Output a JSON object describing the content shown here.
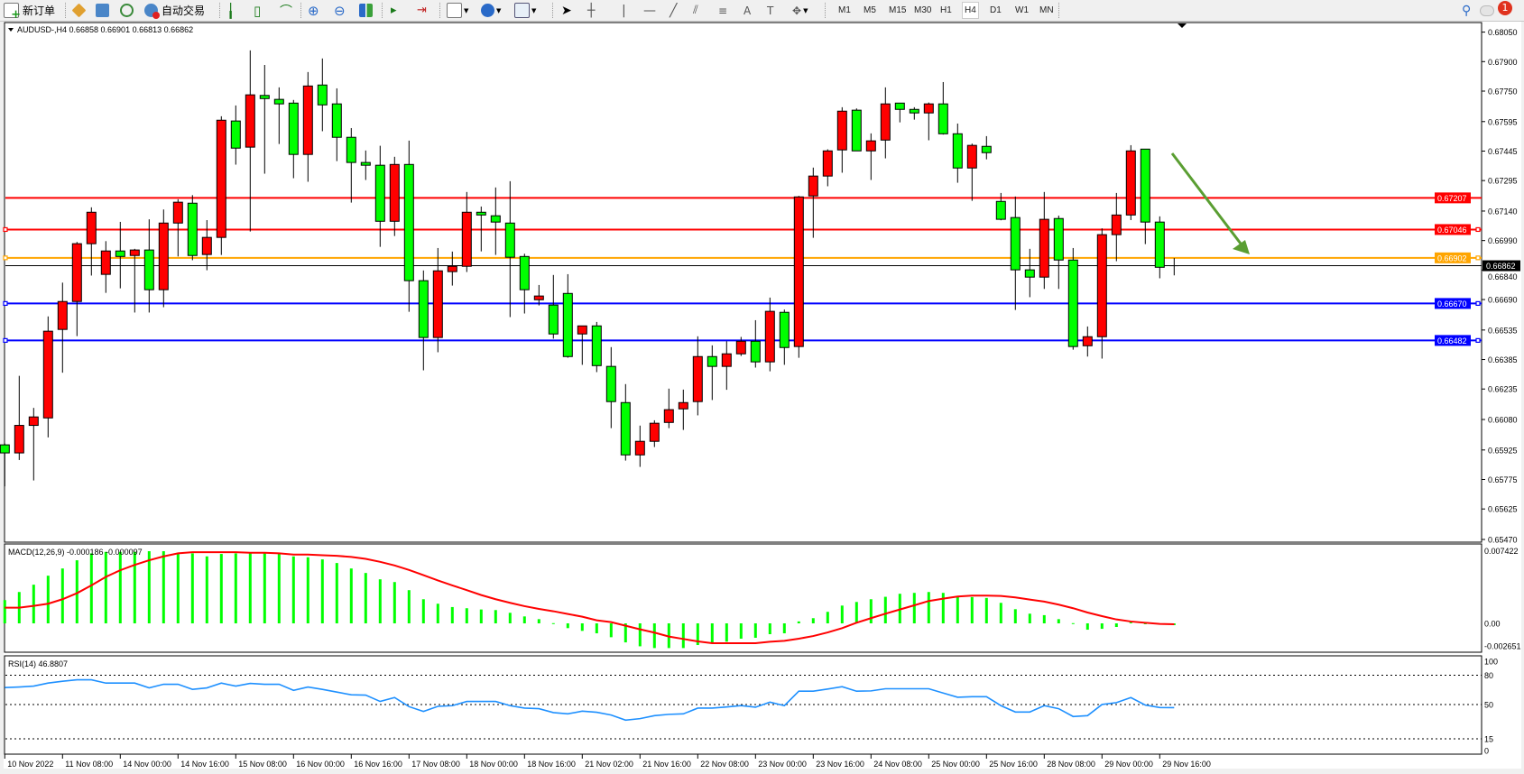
{
  "toolbar": {
    "new_order_label": "新订单",
    "auto_trade_label": "自动交易",
    "timeframes": [
      "M1",
      "M5",
      "M15",
      "M30",
      "H1",
      "H4",
      "D1",
      "W1",
      "MN"
    ],
    "selected_timeframe": "H4",
    "notification_count": "1",
    "icons": [
      "new-order-icon",
      "metaeditor-icon",
      "market-watch-icon",
      "signals-icon",
      "auto-trading-icon",
      "bar-chart-icon",
      "candlestick-icon",
      "line-chart-icon",
      "zoom-in-icon",
      "zoom-out-icon",
      "tile-windows-icon",
      "auto-scroll-icon",
      "chart-shift-icon",
      "indicators-icon",
      "periods-icon",
      "templates-icon",
      "cursor-icon",
      "crosshair-icon",
      "vertical-line-icon",
      "horizontal-line-icon",
      "trendline-icon",
      "equidistant-channel-icon",
      "fibonacci-icon",
      "text-icon",
      "text-label-icon",
      "arrows-icon",
      "search-icon",
      "chat-icon"
    ]
  },
  "chart": {
    "header": "AUDUSD-,H4  0.66858 0.66901 0.66813 0.66862",
    "symbol": "AUDUSD-",
    "timeframe": "H4",
    "ohlc": {
      "open": 0.66858,
      "high": 0.66901,
      "low": 0.66813,
      "close": 0.66862
    },
    "colors": {
      "bull": "#ff0000",
      "bear": "#00ff00",
      "outline": "#000000",
      "arrow": "#5a9e32"
    },
    "price_axis_labels": [
      "0.68050",
      "0.67900",
      "0.67750",
      "0.67595",
      "0.67445",
      "0.67295",
      "0.67140",
      "0.66990",
      "0.66840",
      "0.66690",
      "0.66535",
      "0.66385",
      "0.66235",
      "0.66080",
      "0.65925",
      "0.65775",
      "0.65625",
      "0.65470"
    ],
    "horizontal_lines": [
      {
        "price": "0.67207",
        "color": "#ff0000"
      },
      {
        "price": "0.67046",
        "color": "#ff0000"
      },
      {
        "price": "0.66902",
        "color": "#ffa500"
      },
      {
        "price": "0.66670",
        "color": "#0000ff"
      },
      {
        "price": "0.66482",
        "color": "#0000ff"
      }
    ],
    "current_price": {
      "price": "0.66862",
      "color": "#000000"
    },
    "candles": [
      [
        0.65951,
        0.65958,
        0.6574,
        0.6591
      ],
      [
        0.6591,
        0.66302,
        0.65874,
        0.6605
      ],
      [
        0.6605,
        0.66139,
        0.6577,
        0.66093
      ],
      [
        0.66088,
        0.66604,
        0.65989,
        0.66529
      ],
      [
        0.66538,
        0.66776,
        0.66318,
        0.6668
      ],
      [
        0.6668,
        0.66983,
        0.66504,
        0.66974
      ],
      [
        0.66974,
        0.67159,
        0.66812,
        0.67134
      ],
      [
        0.66818,
        0.66987,
        0.66724,
        0.66937
      ],
      [
        0.66937,
        0.67085,
        0.66747,
        0.66909
      ],
      [
        0.66914,
        0.66948,
        0.66624,
        0.66942
      ],
      [
        0.66942,
        0.67098,
        0.66624,
        0.6674
      ],
      [
        0.6674,
        0.67148,
        0.66651,
        0.67079
      ],
      [
        0.67079,
        0.672,
        0.66909,
        0.67185
      ],
      [
        0.6718,
        0.67221,
        0.6689,
        0.66914
      ],
      [
        0.66919,
        0.67094,
        0.66839,
        0.67006
      ],
      [
        0.67006,
        0.67622,
        0.66917,
        0.67602
      ],
      [
        0.67598,
        0.67677,
        0.67376,
        0.6746
      ],
      [
        0.67465,
        0.67957,
        0.67036,
        0.67731
      ],
      [
        0.67728,
        0.67883,
        0.6733,
        0.67712
      ],
      [
        0.67708,
        0.67769,
        0.67481,
        0.67685
      ],
      [
        0.67689,
        0.67705,
        0.67307,
        0.67428
      ],
      [
        0.67428,
        0.67847,
        0.67289,
        0.67776
      ],
      [
        0.67781,
        0.67916,
        0.67546,
        0.6768
      ],
      [
        0.67685,
        0.67764,
        0.67394,
        0.67515
      ],
      [
        0.67515,
        0.67562,
        0.67183,
        0.67387
      ],
      [
        0.67387,
        0.67448,
        0.67298,
        0.67373
      ],
      [
        0.67373,
        0.67472,
        0.66958,
        0.67088
      ],
      [
        0.67088,
        0.67416,
        0.67013,
        0.67377
      ],
      [
        0.67377,
        0.67498,
        0.66628,
        0.66786
      ],
      [
        0.66786,
        0.66838,
        0.6633,
        0.66497
      ],
      [
        0.66497,
        0.66952,
        0.66422,
        0.66836
      ],
      [
        0.66832,
        0.66934,
        0.66761,
        0.66859
      ],
      [
        0.66859,
        0.67237,
        0.6683,
        0.67134
      ],
      [
        0.67134,
        0.67163,
        0.66935,
        0.6712
      ],
      [
        0.67116,
        0.6726,
        0.66917,
        0.67084
      ],
      [
        0.67079,
        0.67292,
        0.66601,
        0.66905
      ],
      [
        0.66909,
        0.66923,
        0.66619,
        0.6674
      ],
      [
        0.66689,
        0.66764,
        0.6666,
        0.66708
      ],
      [
        0.66662,
        0.66815,
        0.66491,
        0.66515
      ],
      [
        0.66721,
        0.66819,
        0.66394,
        0.664
      ],
      [
        0.66515,
        0.66556,
        0.66358,
        0.66556
      ],
      [
        0.66556,
        0.66576,
        0.66321,
        0.66354
      ],
      [
        0.6635,
        0.66448,
        0.66036,
        0.66171
      ],
      [
        0.66166,
        0.6626,
        0.65871,
        0.659
      ],
      [
        0.659,
        0.66049,
        0.65839,
        0.65969
      ],
      [
        0.65969,
        0.66076,
        0.6594,
        0.66061
      ],
      [
        0.66065,
        0.66237,
        0.66036,
        0.6613
      ],
      [
        0.66134,
        0.66232,
        0.66027,
        0.66166
      ],
      [
        0.66171,
        0.66503,
        0.66101,
        0.664
      ],
      [
        0.664,
        0.66457,
        0.66179,
        0.6635
      ],
      [
        0.6635,
        0.66478,
        0.66231,
        0.66414
      ],
      [
        0.66414,
        0.665,
        0.66403,
        0.66478
      ],
      [
        0.66478,
        0.66585,
        0.66344,
        0.66373
      ],
      [
        0.66373,
        0.667,
        0.66325,
        0.6663
      ],
      [
        0.66625,
        0.66639,
        0.66358,
        0.66446
      ],
      [
        0.66451,
        0.67217,
        0.66394,
        0.67212
      ],
      [
        0.67217,
        0.67361,
        0.67004,
        0.67318
      ],
      [
        0.67318,
        0.67454,
        0.67266,
        0.67446
      ],
      [
        0.67451,
        0.67668,
        0.67335,
        0.67648
      ],
      [
        0.67653,
        0.67662,
        0.67446,
        0.67446
      ],
      [
        0.67446,
        0.67535,
        0.67298,
        0.67497
      ],
      [
        0.67501,
        0.67769,
        0.67408,
        0.67685
      ],
      [
        0.67689,
        0.67689,
        0.67591,
        0.67657
      ],
      [
        0.67657,
        0.67668,
        0.67605,
        0.67639
      ],
      [
        0.67639,
        0.67692,
        0.675,
        0.67685
      ],
      [
        0.67685,
        0.67796,
        0.67529,
        0.67533
      ],
      [
        0.67533,
        0.67585,
        0.67284,
        0.67359
      ],
      [
        0.67359,
        0.67483,
        0.67192,
        0.67474
      ],
      [
        0.67469,
        0.67521,
        0.67403,
        0.67437
      ],
      [
        0.67189,
        0.67232,
        0.67093,
        0.67098
      ],
      [
        0.67107,
        0.67214,
        0.66637,
        0.66841
      ],
      [
        0.66841,
        0.66948,
        0.66702,
        0.66804
      ],
      [
        0.66804,
        0.67237,
        0.66744,
        0.67098
      ],
      [
        0.67102,
        0.67117,
        0.66744,
        0.66891
      ],
      [
        0.66891,
        0.66952,
        0.66435,
        0.66451
      ],
      [
        0.66455,
        0.66553,
        0.664,
        0.66501
      ],
      [
        0.66501,
        0.67052,
        0.6639,
        0.6702
      ],
      [
        0.6702,
        0.67232,
        0.66885,
        0.6712
      ],
      [
        0.6712,
        0.67475,
        0.67094,
        0.67446
      ],
      [
        0.67455,
        0.67455,
        0.66972,
        0.67084
      ],
      [
        0.67084,
        0.67113,
        0.66798,
        0.66854
      ],
      [
        0.66858,
        0.66901,
        0.66813,
        0.66862
      ]
    ],
    "time_labels": [
      "10 Nov 2022",
      "11 Nov 08:00",
      "14 Nov 00:00",
      "14 Nov 16:00",
      "15 Nov 08:00",
      "16 Nov 00:00",
      "16 Nov 16:00",
      "17 Nov 08:00",
      "18 Nov 00:00",
      "18 Nov 16:00",
      "21 Nov 02:00",
      "21 Nov 16:00",
      "22 Nov 08:00",
      "23 Nov 00:00",
      "23 Nov 16:00",
      "24 Nov 08:00",
      "25 Nov 00:00",
      "25 Nov 16:00",
      "28 Nov 08:00",
      "29 Nov 00:00",
      "29 Nov 16:00"
    ]
  },
  "macd": {
    "label": "MACD(12,26,9) -0.000186 -0.000097",
    "axis_labels": [
      "0.007422",
      "0.00",
      "-0.002651"
    ],
    "histogram_color": "#00ff00",
    "signal_color": "#ff0000",
    "histogram": [
      0.00238,
      0.00321,
      0.00396,
      0.00488,
      0.00562,
      0.00646,
      0.00717,
      0.00732,
      0.00732,
      0.00732,
      0.00739,
      0.00739,
      0.00723,
      0.00717,
      0.00686,
      0.00711,
      0.00717,
      0.00717,
      0.00717,
      0.00717,
      0.00686,
      0.00677,
      0.00655,
      0.00618,
      0.00562,
      0.00516,
      0.00451,
      0.00423,
      0.0034,
      0.00247,
      0.00201,
      0.00167,
      0.00155,
      0.00142,
      0.00136,
      0.00108,
      0.00071,
      0.00043,
      2e-05,
      -0.00049,
      -0.00077,
      -0.00102,
      -0.00142,
      -0.00195,
      -0.00235,
      -0.00253,
      -0.00253,
      -0.00253,
      -0.00222,
      -0.00195,
      -0.00188,
      -0.00157,
      -0.00148,
      -0.00111,
      -0.00102,
      0.0002,
      0.00053,
      0.00118,
      0.00182,
      0.00219,
      0.00247,
      0.00272,
      0.00303,
      0.00312,
      0.00321,
      0.00312,
      0.00275,
      0.00269,
      0.0026,
      0.0021,
      0.00145,
      0.00099,
      0.00084,
      0.00043,
      2e-05,
      -0.00065,
      -0.00056,
      -0.00037,
      0.00012,
      0.0,
      -3e-05,
      -0.000186
    ],
    "signal": [
      0.00161,
      0.00161,
      0.00179,
      0.00201,
      0.00247,
      0.00309,
      0.00389,
      0.00476,
      0.00544,
      0.00599,
      0.00646,
      0.00686,
      0.00717,
      0.00729,
      0.00729,
      0.00729,
      0.00729,
      0.00723,
      0.00723,
      0.00717,
      0.00705,
      0.00705,
      0.00698,
      0.00692,
      0.0068,
      0.00661,
      0.0063,
      0.00593,
      0.00547,
      0.00494,
      0.00439,
      0.00389,
      0.0034,
      0.0029,
      0.00247,
      0.0021,
      0.00176,
      0.00148,
      0.00124,
      0.00096,
      0.00068,
      0.00031,
      0.00013,
      -0.00024,
      -0.00061,
      -0.00095,
      -0.00135,
      -0.0016,
      -0.00185,
      -0.00203,
      -0.00203,
      -0.00203,
      -0.00203,
      -0.00188,
      -0.00179,
      -0.00157,
      -0.0013,
      -0.00093,
      -0.00049,
      6e-05,
      0.00053,
      0.00099,
      0.00142,
      0.00185,
      0.00229,
      0.00253,
      0.00275,
      0.00284,
      0.00284,
      0.00281,
      0.00266,
      0.00244,
      0.00223,
      0.00192,
      0.00155,
      0.00111,
      0.00074,
      0.0004,
      0.00019,
      6e-05,
      -6e-05,
      -9.7e-05
    ]
  },
  "rsi": {
    "label": "RSI(14) 46.8807",
    "axis_labels": [
      "100",
      "80",
      "50",
      "15",
      "0"
    ],
    "levels": [
      80,
      50,
      15
    ],
    "color": "#1e90ff",
    "values": [
      67.4,
      68.0,
      68.9,
      72.0,
      73.9,
      75.4,
      75.4,
      72.0,
      72.0,
      72.0,
      67.1,
      70.8,
      70.8,
      65.6,
      67.1,
      72.0,
      68.9,
      71.7,
      70.8,
      70.8,
      64.6,
      68.0,
      65.6,
      62.8,
      60.0,
      59.7,
      53.2,
      57.2,
      47.9,
      43.0,
      48.2,
      48.9,
      53.2,
      53.2,
      53.2,
      48.9,
      46.4,
      45.8,
      41.8,
      40.5,
      43.3,
      42.1,
      39.3,
      34.1,
      35.6,
      38.7,
      40.0,
      40.5,
      46.4,
      46.4,
      47.6,
      48.9,
      47.3,
      52.5,
      48.9,
      63.7,
      63.7,
      65.9,
      68.3,
      63.7,
      64.0,
      66.2,
      66.2,
      66.2,
      66.2,
      61.8,
      57.5,
      58.1,
      58.1,
      48.9,
      42.4,
      42.4,
      48.9,
      45.8,
      37.8,
      38.7,
      50.1,
      52.0,
      57.2,
      49.5,
      47.0,
      46.88
    ]
  }
}
